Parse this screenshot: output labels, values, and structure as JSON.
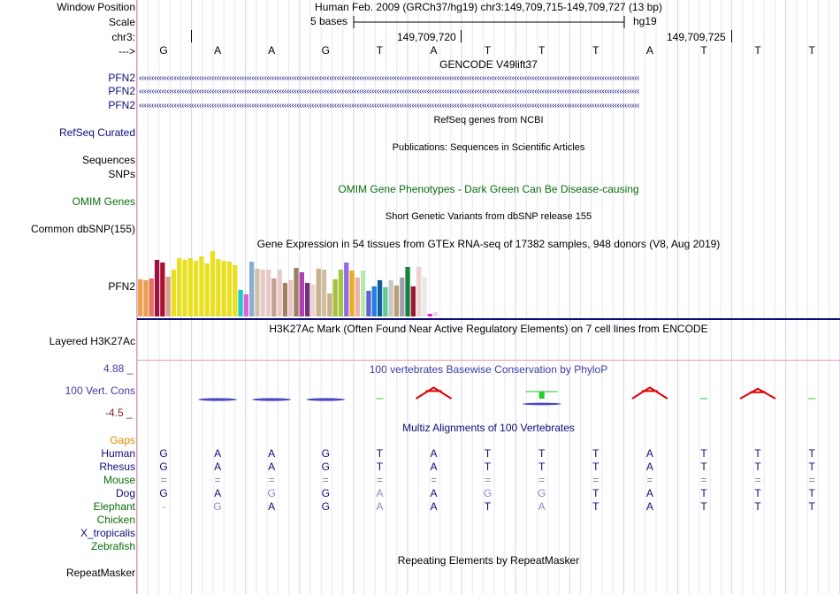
{
  "header": {
    "window_position_label": "Window Position",
    "window_position_value": "Human Feb. 2009 (GRCh37/hg19)   chr3:149,709,715-149,709,727 (13 bp)",
    "scale_label": "Scale",
    "scale_value": "5 bases",
    "scale_assembly": "hg19",
    "chrom_label": "chr3:",
    "pos_tick_1": "149,709,720",
    "pos_tick_2": "149,709,725",
    "strand_label": "--->",
    "bases": [
      "G",
      "A",
      "A",
      "G",
      "T",
      "A",
      "T",
      "T",
      "T",
      "A",
      "T",
      "T",
      "T"
    ]
  },
  "gencode": {
    "title": "GENCODE V49lift37",
    "genes": [
      "PFN2",
      "PFN2",
      "PFN2"
    ]
  },
  "refseq": {
    "title": "RefSeq genes from NCBI",
    "label": "RefSeq Curated"
  },
  "publications": {
    "title": "Publications: Sequences in Scientific Articles",
    "label_sequences": "Sequences",
    "label_snps": "SNPs"
  },
  "omim": {
    "title": "OMIM Gene Phenotypes - Dark Green Can Be Disease-causing",
    "label": "OMIM Genes"
  },
  "dbsnp": {
    "title": "Short Genetic Variants from dbSNP release 155",
    "label": "Common dbSNP(155)"
  },
  "gtex": {
    "title": "Gene Expression in 54 tissues from GTEx RNA-seq of 17382 samples, 948 donors (V8, Aug 2019)",
    "label": "PFN2"
  },
  "chart_data": {
    "type": "bar",
    "title": "Gene Expression in 54 tissues from GTEx RNA-seq of 17382 samples, 948 donors (V8, Aug 2019)",
    "xlabel": "",
    "ylabel": "",
    "ylim": [
      0,
      75
    ],
    "values": [
      42,
      41,
      43,
      64,
      61,
      45,
      53,
      66,
      64,
      66,
      63,
      68,
      60,
      74,
      65,
      63,
      62,
      58,
      30,
      25,
      62,
      54,
      53,
      53,
      43,
      53,
      38,
      41,
      55,
      50,
      38,
      36,
      54,
      53,
      26,
      42,
      53,
      61,
      52,
      44,
      52,
      29,
      34,
      41,
      33,
      41,
      35,
      44,
      56,
      34,
      56,
      45,
      3,
      5
    ],
    "colors": [
      "#f0a050",
      "#e8a050",
      "#e87060",
      "#a01040",
      "#aa1030",
      "#d4a090",
      "#e8e020",
      "#e8e020",
      "#e8e020",
      "#e8e020",
      "#e8e020",
      "#e8e020",
      "#e8e020",
      "#e8e020",
      "#e8e020",
      "#e8e020",
      "#e8e020",
      "#e8e020",
      "#20c8c8",
      "#e060e0",
      "#8aaed0",
      "#d0c0b0",
      "#e8c8c8",
      "#e8c8c8",
      "#c4a090",
      "#e8c8c8",
      "#a08060",
      "#e8c8c8",
      "#9a8260",
      "#b040b0",
      "#7a2e80",
      "#e8d8c8",
      "#c8b090",
      "#d0c0a0",
      "#c8b090",
      "#a8c040",
      "#a0c840",
      "#9868e8",
      "#e8b020",
      "#f0b0b0",
      "#b8e8b0",
      "#6060d0",
      "#2080e0",
      "#1060a0",
      "#60c890",
      "#c8c8c8",
      "#b8a070",
      "#a0a0b0",
      "#188040",
      "#9c1830",
      "#f0d0d0",
      "#e8e8e8",
      "#e020e0",
      "#e8d8e8"
    ]
  },
  "h3k27ac": {
    "title": "H3K27Ac Mark (Often Found Near Active Regulatory Elements) on 7 cell lines from ENCODE",
    "label": "Layered H3K27Ac"
  },
  "phylop": {
    "title": "100 vertebrates Basewise Conservation by PhyloP",
    "label": "100 Vert. Cons",
    "max_label": "4.88 _",
    "min_label": "-4.5 _",
    "max": 4.88,
    "min": -4.5,
    "scores": [
      0,
      -0.25,
      -0.3,
      -0.15,
      0.1,
      0.9,
      0,
      0.5,
      0,
      0.9,
      0.15,
      0.8,
      0.1
    ]
  },
  "multiz": {
    "title": "Multiz Alignments of 100 Vertebrates",
    "gaps_label": "Gaps",
    "species": [
      {
        "name": "Human",
        "color": "#0c0c78",
        "bases": [
          "G",
          "A",
          "A",
          "G",
          "T",
          "A",
          "T",
          "T",
          "T",
          "A",
          "T",
          "T",
          "T"
        ]
      },
      {
        "name": "Rhesus",
        "color": "#0c0c78",
        "bases": [
          "G",
          "A",
          "A",
          "G",
          "T",
          "A",
          "T",
          "T",
          "T",
          "A",
          "T",
          "T",
          "T"
        ]
      },
      {
        "name": "Mouse",
        "color": "#0a6e0a",
        "bases": [
          "=",
          "=",
          "=",
          "=",
          "=",
          "=",
          "=",
          "=",
          "=",
          "=",
          "=",
          "=",
          "="
        ]
      },
      {
        "name": "Dog",
        "color": "#0c0c78",
        "bases": [
          "G",
          "A",
          "G",
          "G",
          "A",
          "A",
          "G",
          "G",
          "T",
          "A",
          "T",
          "T",
          "T"
        ]
      },
      {
        "name": "Elephant",
        "color": "#0a6e0a",
        "bases": [
          "-",
          "G",
          "A",
          "G",
          "A",
          "A",
          "T",
          "A",
          "T",
          "A",
          "T",
          "T",
          "T"
        ]
      },
      {
        "name": "Chicken",
        "color": "#0a6e0a",
        "bases": []
      },
      {
        "name": "X_tropicalis",
        "color": "#0c0c78",
        "bases": []
      },
      {
        "name": "Zebrafish",
        "color": "#0a6e0a",
        "bases": []
      }
    ]
  },
  "repeatmasker": {
    "title": "Repeating Elements by RepeatMasker",
    "label": "RepeatMasker"
  }
}
